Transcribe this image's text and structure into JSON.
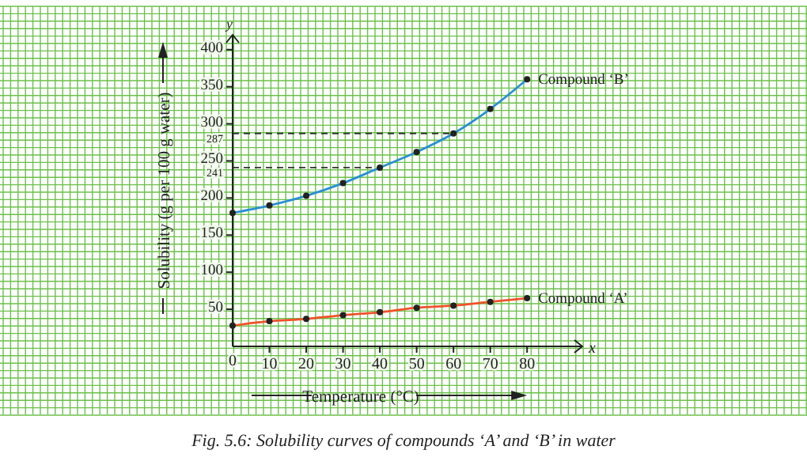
{
  "chart_data": {
    "type": "line",
    "xlabel": "Temperature (°C)",
    "ylabel": "Solubility (g per 100 g water)",
    "annotations": [
      "Fig. 5.6: Solubility curves of compounds ‘A’ and ‘B’ in water",
      "y",
      "x"
    ],
    "x": [
      0,
      10,
      20,
      30,
      40,
      50,
      60,
      70,
      80
    ],
    "series": [
      {
        "name": "Compound ‘B’",
        "color": "#2a8fd6",
        "values": [
          180,
          190,
          203,
          220,
          241,
          262,
          287,
          320,
          360
        ]
      },
      {
        "name": "Compound ‘A’",
        "color": "#f0522a",
        "values": [
          28,
          34,
          37,
          42,
          46,
          52,
          55,
          60,
          65
        ]
      }
    ],
    "xlim": [
      0,
      95
    ],
    "ylim": [
      0,
      420
    ],
    "xticks": [
      0,
      10,
      20,
      30,
      40,
      50,
      60,
      70,
      80
    ],
    "yticks": [
      50,
      100,
      150,
      200,
      250,
      300,
      350,
      400
    ],
    "ref_lines": [
      {
        "axis": "y",
        "value": 241,
        "label": "241",
        "line_style": "dashed",
        "color": "#333333"
      },
      {
        "axis": "y",
        "value": 287,
        "label": "287",
        "line_style": "dashed",
        "color": "#333333"
      }
    ],
    "grid": true,
    "marker": "circle",
    "line_style": "solid"
  }
}
